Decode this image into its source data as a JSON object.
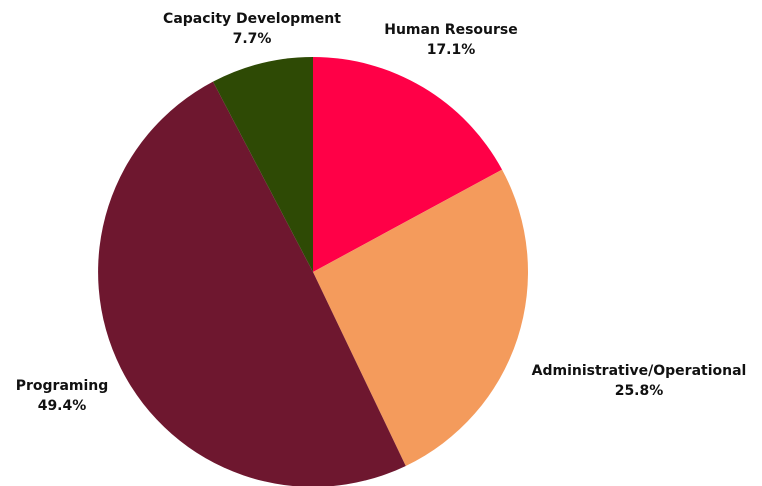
{
  "chart_data": {
    "type": "pie",
    "title": "",
    "slices": [
      {
        "label": "Human Resourse",
        "value": 17.1,
        "value_label": "17.1%",
        "color": "#ff0047"
      },
      {
        "label": "Administrative/Operational",
        "value": 25.8,
        "value_label": "25.8%",
        "color": "#f49b5c"
      },
      {
        "label": "Programing",
        "value": 49.4,
        "value_label": "49.4%",
        "color": "#6e172f"
      },
      {
        "label": "Capacity Development",
        "value": 7.7,
        "value_label": "7.7%",
        "color": "#2e4a05"
      }
    ],
    "start_angle": "12 o'clock",
    "direction": "clockwise",
    "legend": "none"
  }
}
